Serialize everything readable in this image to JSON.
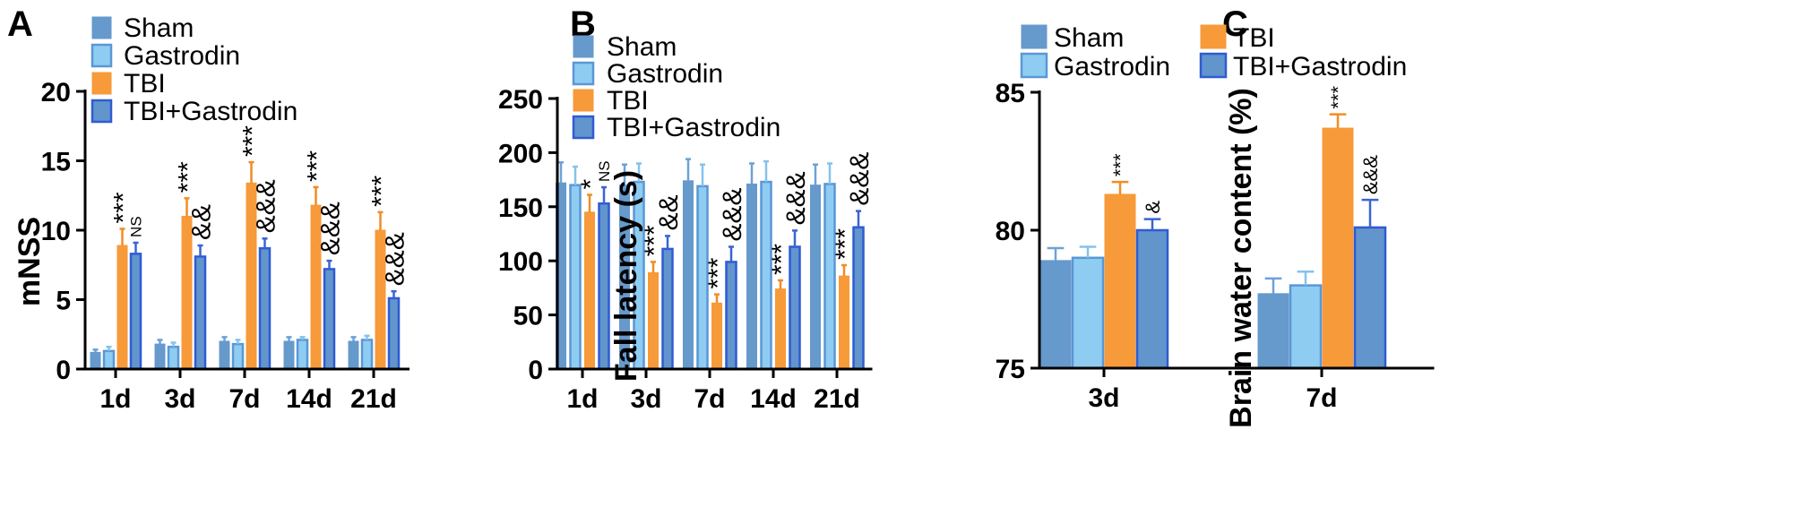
{
  "colors": {
    "sham": "#6699cc",
    "gastrodin": "#8fccf2",
    "tbi": "#f79a3a",
    "tbi_gastrodin": "#6195cc",
    "sham_err": "#6da1d8",
    "gastrodin_err": "#85c3ea",
    "tbi_err": "#f28c24",
    "tbi_gastrodin_err": "#3a64d0",
    "gastrodin_border": "#5a97d6",
    "tbi_gastrodin_border": "#2f5bd4"
  },
  "chart_data": [
    {
      "panel": "A",
      "type": "bar",
      "xlabel": "",
      "ylabel": "mNSS",
      "ylim": [
        0,
        20
      ],
      "yticks": [
        "0",
        "5",
        "10",
        "15",
        "20"
      ],
      "categories": [
        "1d",
        "3d",
        "7d",
        "14d",
        "21d"
      ],
      "legend": [
        "Sham",
        "Gastrodin",
        "TBI",
        "TBI+Gastrodin"
      ],
      "series": [
        {
          "name": "Sham",
          "values": [
            1.2,
            1.8,
            2.0,
            2.0,
            2.0
          ],
          "errors": [
            0.2,
            0.3,
            0.3,
            0.3,
            0.3
          ]
        },
        {
          "name": "Gastrodin",
          "values": [
            1.3,
            1.6,
            1.8,
            2.1,
            2.1
          ],
          "errors": [
            0.3,
            0.3,
            0.3,
            0.2,
            0.3
          ]
        },
        {
          "name": "TBI",
          "values": [
            8.9,
            11.0,
            13.4,
            11.8,
            10.0
          ],
          "errors": [
            1.2,
            1.3,
            1.5,
            1.3,
            1.3
          ]
        },
        {
          "name": "TBI+Gastrodin",
          "values": [
            8.3,
            8.1,
            8.7,
            7.2,
            5.1
          ],
          "errors": [
            0.8,
            0.8,
            0.7,
            0.6,
            0.5
          ]
        }
      ],
      "annotations": [
        {
          "category": "1d",
          "series": "TBI",
          "text": "***"
        },
        {
          "category": "1d",
          "series": "TBI+Gastrodin",
          "text": "NS"
        },
        {
          "category": "3d",
          "series": "TBI",
          "text": "***"
        },
        {
          "category": "3d",
          "series": "TBI+Gastrodin",
          "text": "&&"
        },
        {
          "category": "7d",
          "series": "TBI",
          "text": "***"
        },
        {
          "category": "7d",
          "series": "TBI+Gastrodin",
          "text": "&&&"
        },
        {
          "category": "14d",
          "series": "TBI",
          "text": "***"
        },
        {
          "category": "14d",
          "series": "TBI+Gastrodin",
          "text": "&&&"
        },
        {
          "category": "21d",
          "series": "TBI",
          "text": "***"
        },
        {
          "category": "21d",
          "series": "TBI+Gastrodin",
          "text": "&&&"
        }
      ]
    },
    {
      "panel": "B",
      "type": "bar",
      "xlabel": "",
      "ylabel": "Fall latency (s)",
      "ylim": [
        0,
        250
      ],
      "yticks": [
        "0",
        "50",
        "100",
        "150",
        "200",
        "250"
      ],
      "categories": [
        "1d",
        "3d",
        "7d",
        "14d",
        "21d"
      ],
      "legend": [
        "Sham",
        "Gastrodin",
        "TBI",
        "TBI+Gastrodin"
      ],
      "series": [
        {
          "name": "Sham",
          "values": [
            172,
            170,
            174,
            171,
            170
          ],
          "errors": [
            19,
            19,
            20,
            19,
            19
          ]
        },
        {
          "name": "Gastrodin",
          "values": [
            170,
            173,
            169,
            173,
            171
          ],
          "errors": [
            17,
            17,
            20,
            19,
            19
          ]
        },
        {
          "name": "TBI",
          "values": [
            145,
            89,
            61,
            74,
            86
          ],
          "errors": [
            16,
            10,
            8,
            8,
            10
          ]
        },
        {
          "name": "TBI+Gastrodin",
          "values": [
            153,
            111,
            99,
            113,
            131
          ],
          "errors": [
            15,
            12,
            14,
            15,
            15
          ]
        }
      ],
      "annotations": [
        {
          "category": "1d",
          "series": "TBI",
          "text": "*"
        },
        {
          "category": "1d",
          "series": "TBI+Gastrodin",
          "text": "NS"
        },
        {
          "category": "3d",
          "series": "TBI",
          "text": "***"
        },
        {
          "category": "3d",
          "series": "TBI+Gastrodin",
          "text": "&&"
        },
        {
          "category": "7d",
          "series": "TBI",
          "text": "***"
        },
        {
          "category": "7d",
          "series": "TBI+Gastrodin",
          "text": "&&&"
        },
        {
          "category": "14d",
          "series": "TBI",
          "text": "***"
        },
        {
          "category": "14d",
          "series": "TBI+Gastrodin",
          "text": "&&&"
        },
        {
          "category": "21d",
          "series": "TBI",
          "text": "***"
        },
        {
          "category": "21d",
          "series": "TBI+Gastrodin",
          "text": "&&&"
        }
      ]
    },
    {
      "panel": "C",
      "type": "bar",
      "xlabel": "",
      "ylabel": "Brain water content (%)",
      "ylim": [
        75,
        85
      ],
      "yticks": [
        "75",
        "80",
        "85"
      ],
      "categories": [
        "3d",
        "7d"
      ],
      "legend": [
        "Sham",
        "Gastrodin",
        "TBI",
        "TBI+Gastrodin"
      ],
      "series": [
        {
          "name": "Sham",
          "values": [
            78.9,
            77.7
          ],
          "errors": [
            0.45,
            0.55
          ]
        },
        {
          "name": "Gastrodin",
          "values": [
            79.0,
            78.0
          ],
          "errors": [
            0.4,
            0.5
          ]
        },
        {
          "name": "TBI",
          "values": [
            81.3,
            83.7
          ],
          "errors": [
            0.45,
            0.5
          ]
        },
        {
          "name": "TBI+Gastrodin",
          "values": [
            80.0,
            80.1
          ],
          "errors": [
            0.4,
            1.0
          ]
        }
      ],
      "annotations": [
        {
          "category": "3d",
          "series": "TBI",
          "text": "***"
        },
        {
          "category": "3d",
          "series": "TBI+Gastrodin",
          "text": "&"
        },
        {
          "category": "7d",
          "series": "TBI",
          "text": "***"
        },
        {
          "category": "7d",
          "series": "TBI+Gastrodin",
          "text": "&&&"
        }
      ]
    }
  ]
}
